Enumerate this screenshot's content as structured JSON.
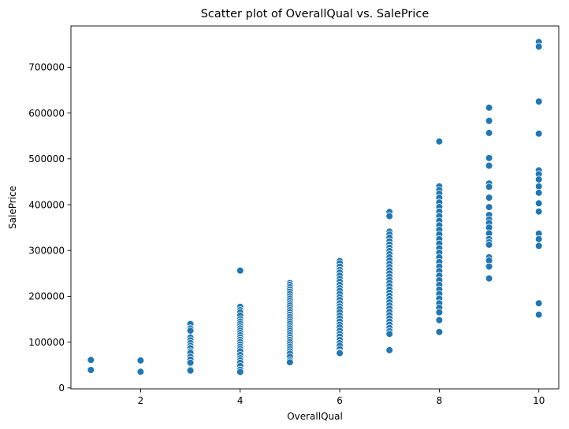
{
  "chart_data": {
    "type": "scatter",
    "title": "Scatter plot of OverallQual vs. SalePrice",
    "xlabel": "OverallQual",
    "ylabel": "SalePrice",
    "xlim": [
      0.6,
      10.4
    ],
    "ylim": [
      -2000,
      790000
    ],
    "x_ticks": [
      2,
      4,
      6,
      8,
      10
    ],
    "y_ticks": [
      0,
      100000,
      200000,
      300000,
      400000,
      500000,
      600000,
      700000
    ],
    "grid": false,
    "point_color": "#1f77b4",
    "points": [
      [
        1,
        61000
      ],
      [
        1,
        39300
      ],
      [
        2,
        60000
      ],
      [
        2,
        35311
      ],
      [
        3,
        139600
      ],
      [
        3,
        130000
      ],
      [
        3,
        125000
      ],
      [
        3,
        110000
      ],
      [
        3,
        104000
      ],
      [
        3,
        98000
      ],
      [
        3,
        92000
      ],
      [
        3,
        87000
      ],
      [
        3,
        80000
      ],
      [
        3,
        76500
      ],
      [
        3,
        68000
      ],
      [
        3,
        62000
      ],
      [
        3,
        55000
      ],
      [
        3,
        40000
      ],
      [
        3,
        37900
      ],
      [
        4,
        256000
      ],
      [
        4,
        177000
      ],
      [
        4,
        170000
      ],
      [
        4,
        165000
      ],
      [
        4,
        158000
      ],
      [
        4,
        150000
      ],
      [
        4,
        145000
      ],
      [
        4,
        140000
      ],
      [
        4,
        135000
      ],
      [
        4,
        130000
      ],
      [
        4,
        125000
      ],
      [
        4,
        120000
      ],
      [
        4,
        115000
      ],
      [
        4,
        110000
      ],
      [
        4,
        105000
      ],
      [
        4,
        100000
      ],
      [
        4,
        95000
      ],
      [
        4,
        90000
      ],
      [
        4,
        85000
      ],
      [
        4,
        80000
      ],
      [
        4,
        72000
      ],
      [
        4,
        65000
      ],
      [
        4,
        60000
      ],
      [
        4,
        55000
      ],
      [
        4,
        48000
      ],
      [
        4,
        40000
      ],
      [
        4,
        34900
      ],
      [
        5,
        228950
      ],
      [
        5,
        225000
      ],
      [
        5,
        220000
      ],
      [
        5,
        215000
      ],
      [
        5,
        210000
      ],
      [
        5,
        205000
      ],
      [
        5,
        200000
      ],
      [
        5,
        195000
      ],
      [
        5,
        190000
      ],
      [
        5,
        185000
      ],
      [
        5,
        180000
      ],
      [
        5,
        175000
      ],
      [
        5,
        170000
      ],
      [
        5,
        165000
      ],
      [
        5,
        160000
      ],
      [
        5,
        155000
      ],
      [
        5,
        150000
      ],
      [
        5,
        145000
      ],
      [
        5,
        140000
      ],
      [
        5,
        135000
      ],
      [
        5,
        130000
      ],
      [
        5,
        125000
      ],
      [
        5,
        120000
      ],
      [
        5,
        115000
      ],
      [
        5,
        110000
      ],
      [
        5,
        105000
      ],
      [
        5,
        100000
      ],
      [
        5,
        95000
      ],
      [
        5,
        90000
      ],
      [
        5,
        85000
      ],
      [
        5,
        80000
      ],
      [
        5,
        75000
      ],
      [
        5,
        68000
      ],
      [
        5,
        60000
      ],
      [
        5,
        56000
      ],
      [
        6,
        277000
      ],
      [
        6,
        272000
      ],
      [
        6,
        265000
      ],
      [
        6,
        258000
      ],
      [
        6,
        252000
      ],
      [
        6,
        245000
      ],
      [
        6,
        238000
      ],
      [
        6,
        232000
      ],
      [
        6,
        225000
      ],
      [
        6,
        218000
      ],
      [
        6,
        212000
      ],
      [
        6,
        205000
      ],
      [
        6,
        198000
      ],
      [
        6,
        192000
      ],
      [
        6,
        185000
      ],
      [
        6,
        178000
      ],
      [
        6,
        172000
      ],
      [
        6,
        165000
      ],
      [
        6,
        158000
      ],
      [
        6,
        152000
      ],
      [
        6,
        145000
      ],
      [
        6,
        138000
      ],
      [
        6,
        132000
      ],
      [
        6,
        125000
      ],
      [
        6,
        118000
      ],
      [
        6,
        112000
      ],
      [
        6,
        105000
      ],
      [
        6,
        98000
      ],
      [
        6,
        92000
      ],
      [
        6,
        85000
      ],
      [
        6,
        78000
      ],
      [
        6,
        76000
      ],
      [
        7,
        384000
      ],
      [
        7,
        375000
      ],
      [
        7,
        341000
      ],
      [
        7,
        335000
      ],
      [
        7,
        328000
      ],
      [
        7,
        320000
      ],
      [
        7,
        313000
      ],
      [
        7,
        306000
      ],
      [
        7,
        299000
      ],
      [
        7,
        292000
      ],
      [
        7,
        285000
      ],
      [
        7,
        278000
      ],
      [
        7,
        271000
      ],
      [
        7,
        264000
      ],
      [
        7,
        257000
      ],
      [
        7,
        250000
      ],
      [
        7,
        243000
      ],
      [
        7,
        236000
      ],
      [
        7,
        229000
      ],
      [
        7,
        222000
      ],
      [
        7,
        215000
      ],
      [
        7,
        208000
      ],
      [
        7,
        201000
      ],
      [
        7,
        194000
      ],
      [
        7,
        187000
      ],
      [
        7,
        180000
      ],
      [
        7,
        173000
      ],
      [
        7,
        166000
      ],
      [
        7,
        159000
      ],
      [
        7,
        152000
      ],
      [
        7,
        145000
      ],
      [
        7,
        138000
      ],
      [
        7,
        131000
      ],
      [
        7,
        124000
      ],
      [
        7,
        118000
      ],
      [
        7,
        82500
      ],
      [
        8,
        538000
      ],
      [
        8,
        440000
      ],
      [
        8,
        432000
      ],
      [
        8,
        424000
      ],
      [
        8,
        415000
      ],
      [
        8,
        405000
      ],
      [
        8,
        395000
      ],
      [
        8,
        385000
      ],
      [
        8,
        375000
      ],
      [
        8,
        365000
      ],
      [
        8,
        355000
      ],
      [
        8,
        345000
      ],
      [
        8,
        335000
      ],
      [
        8,
        325000
      ],
      [
        8,
        315000
      ],
      [
        8,
        305000
      ],
      [
        8,
        295000
      ],
      [
        8,
        285000
      ],
      [
        8,
        275000
      ],
      [
        8,
        265000
      ],
      [
        8,
        255000
      ],
      [
        8,
        245000
      ],
      [
        8,
        235000
      ],
      [
        8,
        225000
      ],
      [
        8,
        215000
      ],
      [
        8,
        205000
      ],
      [
        8,
        195000
      ],
      [
        8,
        185000
      ],
      [
        8,
        175000
      ],
      [
        8,
        165000
      ],
      [
        8,
        148000
      ],
      [
        8,
        122000
      ],
      [
        9,
        611657
      ],
      [
        9,
        582933
      ],
      [
        9,
        556581
      ],
      [
        9,
        501837
      ],
      [
        9,
        485000
      ],
      [
        9,
        446261
      ],
      [
        9,
        438780
      ],
      [
        9,
        415298
      ],
      [
        9,
        394617
      ],
      [
        9,
        377500
      ],
      [
        9,
        367294
      ],
      [
        9,
        360000
      ],
      [
        9,
        350000
      ],
      [
        9,
        337500
      ],
      [
        9,
        325000
      ],
      [
        9,
        318000
      ],
      [
        9,
        312500
      ],
      [
        9,
        285000
      ],
      [
        9,
        278000
      ],
      [
        9,
        265000
      ],
      [
        9,
        239000
      ],
      [
        10,
        755000
      ],
      [
        10,
        745000
      ],
      [
        10,
        625000
      ],
      [
        10,
        555000
      ],
      [
        10,
        475000
      ],
      [
        10,
        466500
      ],
      [
        10,
        455000
      ],
      [
        10,
        440000
      ],
      [
        10,
        426000
      ],
      [
        10,
        402861
      ],
      [
        10,
        385000
      ],
      [
        10,
        337000
      ],
      [
        10,
        325000
      ],
      [
        10,
        310000
      ],
      [
        10,
        184750
      ],
      [
        10,
        160000
      ]
    ]
  }
}
